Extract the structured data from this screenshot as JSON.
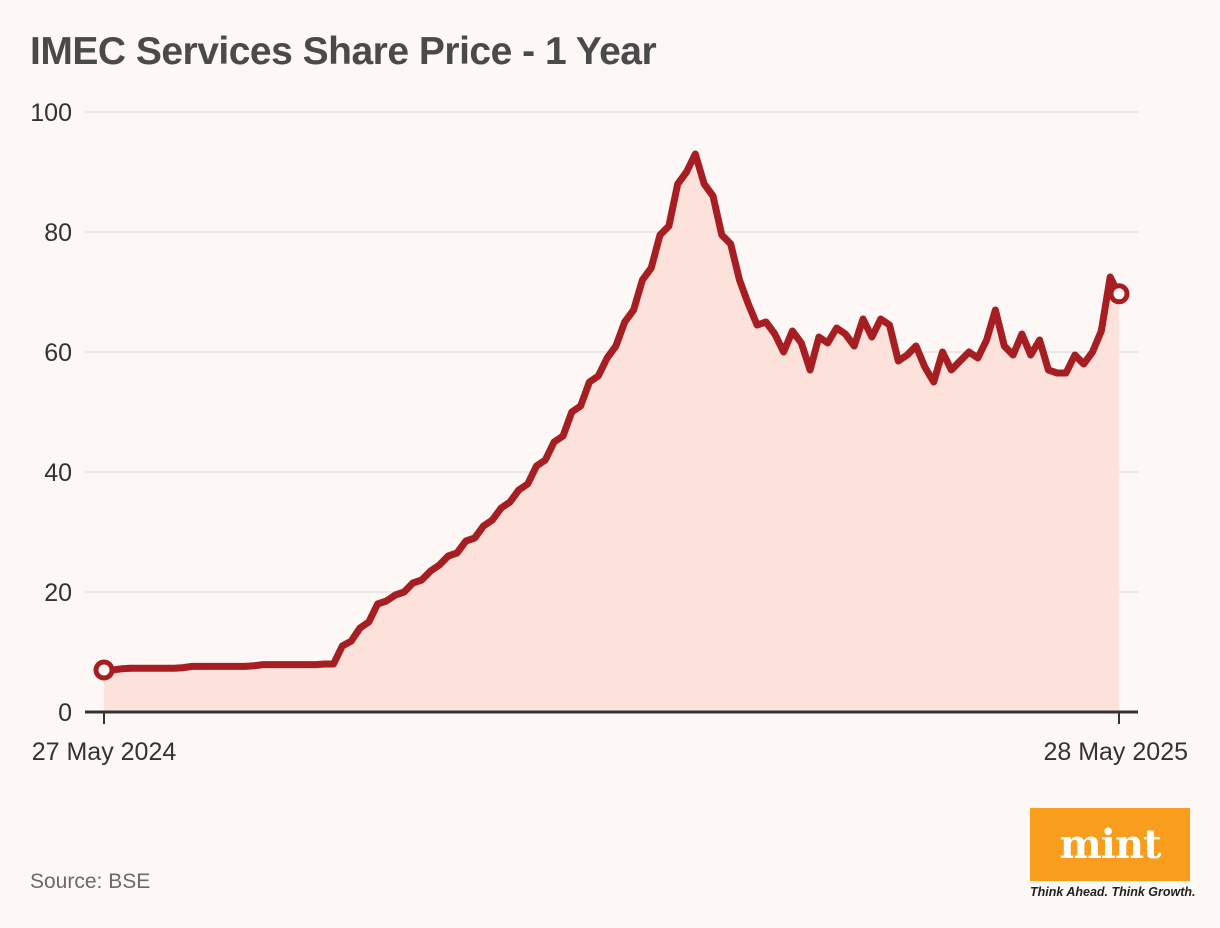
{
  "chart_data": {
    "type": "area",
    "title": "IMEC Services Share Price - 1 Year",
    "source": "Source: BSE",
    "xlabel": "",
    "ylabel": "",
    "x_start_label": "27 May 2024",
    "x_end_label": "28 May 2025",
    "ylim": [
      0,
      100
    ],
    "yticks": [
      0,
      20,
      40,
      60,
      80,
      100
    ],
    "grid": true,
    "line_color": "#a61e22",
    "fill_color": "#fde2dc",
    "series": [
      {
        "name": "IMEC Services",
        "values": [
          7.0,
          7.0,
          7.2,
          7.3,
          7.3,
          7.3,
          7.3,
          7.3,
          7.3,
          7.4,
          7.6,
          7.6,
          7.6,
          7.6,
          7.6,
          7.6,
          7.6,
          7.7,
          7.9,
          7.9,
          7.9,
          7.9,
          7.9,
          7.9,
          7.9,
          8.0,
          8.0,
          11.0,
          11.8,
          14.0,
          15.0,
          18.0,
          18.5,
          19.5,
          20.0,
          21.5,
          22.0,
          23.5,
          24.5,
          26.0,
          26.5,
          28.5,
          29.0,
          31.0,
          32.0,
          34.0,
          35.0,
          37.0,
          38.0,
          41.0,
          42.0,
          45.0,
          46.0,
          50.0,
          51.0,
          55.0,
          56.0,
          59.0,
          61.0,
          65.0,
          67.0,
          72.0,
          74.0,
          79.5,
          81.0,
          88.0,
          90.0,
          93.0,
          88.0,
          86.0,
          79.5,
          78.0,
          72.0,
          68.0,
          64.5,
          65.0,
          63.0,
          60.0,
          63.5,
          61.5,
          57.0,
          62.5,
          61.5,
          64.0,
          63.0,
          61.0,
          65.5,
          62.5,
          65.5,
          64.5,
          58.5,
          59.5,
          61.0,
          57.5,
          55.0,
          60.0,
          57.0,
          58.5,
          60.0,
          59.0,
          62.0,
          67.0,
          61.0,
          59.5,
          63.0,
          59.5,
          62.0,
          57.0,
          56.5,
          56.5,
          59.5,
          58.0,
          60.0,
          63.5,
          72.5,
          69.5
        ]
      }
    ],
    "start_value": 7.0,
    "end_value": 69.7
  },
  "brand": {
    "logo_text": "mint",
    "tagline": "Think Ahead. Think Growth."
  }
}
